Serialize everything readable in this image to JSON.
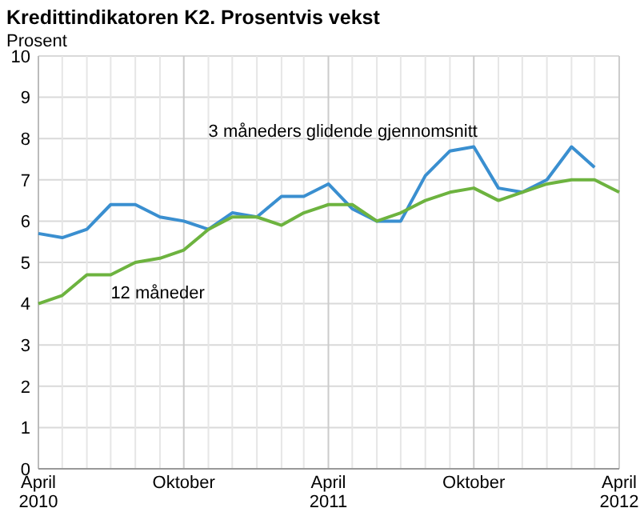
{
  "chart_data": {
    "type": "line",
    "title": "Kredittindikatoren K2. Prosentvis vekst",
    "ylabel": "Prosent",
    "x": [
      "2010-04",
      "2010-05",
      "2010-06",
      "2010-07",
      "2010-08",
      "2010-09",
      "2010-10",
      "2010-11",
      "2010-12",
      "2011-01",
      "2011-02",
      "2011-03",
      "2011-04",
      "2011-05",
      "2011-06",
      "2011-07",
      "2011-08",
      "2011-09",
      "2011-10",
      "2011-11",
      "2011-12",
      "2012-01",
      "2012-02",
      "2012-03",
      "2012-04"
    ],
    "series": [
      {
        "name": "3 måneders glidende gjennomsnitt",
        "color": "#3a8fd0",
        "values": [
          5.7,
          5.6,
          5.8,
          6.4,
          6.4,
          6.1,
          6.0,
          5.8,
          6.2,
          6.1,
          6.6,
          6.6,
          6.9,
          6.3,
          6.0,
          6.0,
          7.1,
          7.7,
          7.8,
          6.8,
          6.7,
          7.0,
          7.8,
          7.3,
          null
        ]
      },
      {
        "name": "12 måneder",
        "color": "#6db33f",
        "values": [
          4.0,
          4.2,
          4.7,
          4.7,
          5.0,
          5.1,
          5.3,
          5.8,
          6.1,
          6.1,
          5.9,
          6.2,
          6.4,
          6.4,
          6.0,
          6.2,
          6.5,
          6.7,
          6.8,
          6.5,
          6.7,
          6.9,
          7.0,
          7.0,
          6.7
        ]
      }
    ],
    "xlim": [
      "2010-04",
      "2012-04"
    ],
    "xticks": [
      {
        "value": "2010-04",
        "label": "April\n2010"
      },
      {
        "value": "2010-05",
        "label": null
      },
      {
        "value": "2010-06",
        "label": null
      },
      {
        "value": "2010-07",
        "label": null
      },
      {
        "value": "2010-08",
        "label": null
      },
      {
        "value": "2010-09",
        "label": null
      },
      {
        "value": "2010-10",
        "label": "Oktober"
      },
      {
        "value": "2010-11",
        "label": null
      },
      {
        "value": "2010-12",
        "label": null
      },
      {
        "value": "2011-01",
        "label": null
      },
      {
        "value": "2011-02",
        "label": null
      },
      {
        "value": "2011-03",
        "label": null
      },
      {
        "value": "2011-04",
        "label": "April\n2011"
      },
      {
        "value": "2011-05",
        "label": null
      },
      {
        "value": "2011-06",
        "label": null
      },
      {
        "value": "2011-07",
        "label": null
      },
      {
        "value": "2011-08",
        "label": null
      },
      {
        "value": "2011-09",
        "label": null
      },
      {
        "value": "2011-10",
        "label": "Oktober"
      },
      {
        "value": "2011-11",
        "label": null
      },
      {
        "value": "2011-12",
        "label": null
      },
      {
        "value": "2012-01",
        "label": null
      },
      {
        "value": "2012-02",
        "label": null
      },
      {
        "value": "2012-03",
        "label": null
      },
      {
        "value": "2012-04",
        "label": "April\n2012"
      }
    ],
    "ylim": [
      0,
      10
    ],
    "yticks": [
      0,
      1,
      2,
      3,
      4,
      5,
      6,
      7,
      8,
      9,
      10
    ],
    "grid": true
  }
}
